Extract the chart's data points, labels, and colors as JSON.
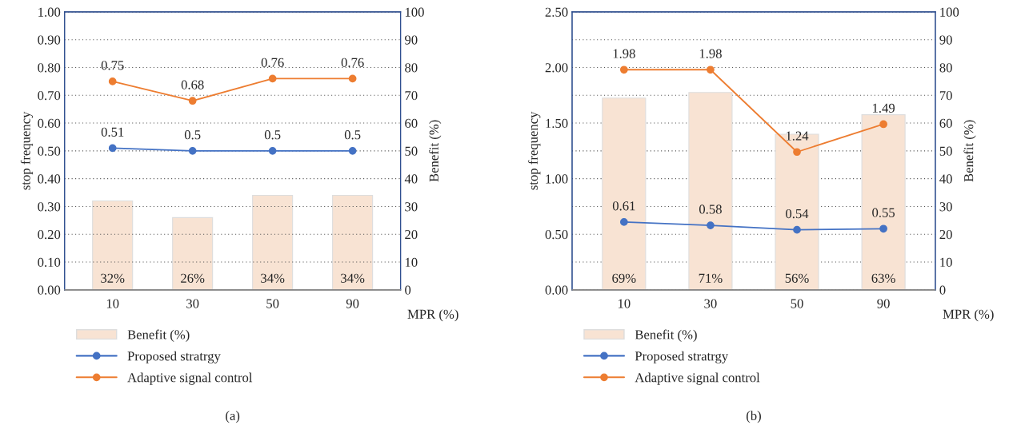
{
  "chart_data": [
    {
      "type": "bar",
      "categories": [
        "10",
        "30",
        "50",
        "90"
      ],
      "xlabel": "MPR (%)",
      "ylabel": "stop frequency",
      "y2label": "Benefit (%)",
      "ylim": [
        0,
        1
      ],
      "yticks": [
        {
          "value": 0,
          "label": "0.00"
        },
        {
          "value": 0.1,
          "label": "0.10"
        },
        {
          "value": 0.2,
          "label": "0.20"
        },
        {
          "value": 0.3,
          "label": "0.30"
        },
        {
          "value": 0.4,
          "label": "0.40"
        },
        {
          "value": 0.5,
          "label": "0.50"
        },
        {
          "value": 0.6,
          "label": "0.60"
        },
        {
          "value": 0.7,
          "label": "0.70"
        },
        {
          "value": 0.8,
          "label": "0.80"
        },
        {
          "value": 0.9,
          "label": "0.90"
        },
        {
          "value": 1,
          "label": "1.00"
        }
      ],
      "y2lim": [
        0,
        100
      ],
      "y2ticks": [
        0,
        10,
        20,
        30,
        40,
        50,
        60,
        70,
        80,
        90,
        100
      ],
      "grid": "y",
      "legend": "bottom",
      "marker": "circle",
      "line_style": "solid",
      "series": [
        {
          "name": "Benefit (%)",
          "axis": "y2",
          "color": "#f8e3d3",
          "values": [
            32,
            26,
            34,
            34
          ],
          "value_labels": [
            "32%",
            "26%",
            "34%",
            "34%"
          ]
        },
        {
          "name": "Proposed stratrgy",
          "type": "line",
          "color": "#4472c4",
          "values": [
            0.51,
            0.5,
            0.5,
            0.5
          ],
          "value_labels": [
            "0.51",
            "0.5",
            "0.5",
            "0.5"
          ]
        },
        {
          "name": "Adaptive signal control",
          "type": "line",
          "color": "#ed7d31",
          "values": [
            0.75,
            0.68,
            0.76,
            0.76
          ],
          "value_labels": [
            "0.75",
            "0.68",
            "0.76",
            "0.76"
          ]
        }
      ],
      "annotations": [
        "(a)"
      ]
    },
    {
      "type": "bar",
      "categories": [
        "10",
        "30",
        "50",
        "90"
      ],
      "xlabel": "MPR (%)",
      "ylabel": "stop frequency",
      "y2label": "Benefit (%)",
      "ylim": [
        0,
        2.5
      ],
      "yticks": [
        {
          "value": 0,
          "label": "0.00"
        },
        {
          "value": 0.5,
          "label": "0.50"
        },
        {
          "value": 1,
          "label": "1.00"
        },
        {
          "value": 1.5,
          "label": "1.50"
        },
        {
          "value": 2,
          "label": "2.00"
        },
        {
          "value": 2.5,
          "label": "2.50"
        }
      ],
      "y2lim": [
        0,
        100
      ],
      "y2ticks": [
        0,
        10,
        20,
        30,
        40,
        50,
        60,
        70,
        80,
        90,
        100
      ],
      "grid": "y2",
      "legend": "bottom",
      "marker": "circle",
      "line_style": "solid",
      "series": [
        {
          "name": "Benefit (%)",
          "axis": "y2",
          "color": "#f8e3d3",
          "values": [
            69,
            71,
            56,
            63
          ],
          "value_labels": [
            "69%",
            "71%",
            "56%",
            "63%"
          ]
        },
        {
          "name": "Proposed stratrgy",
          "type": "line",
          "color": "#4472c4",
          "values": [
            0.61,
            0.58,
            0.54,
            0.55
          ],
          "value_labels": [
            "0.61",
            "0.58",
            "0.54",
            "0.55"
          ]
        },
        {
          "name": "Adaptive signal control",
          "type": "line",
          "color": "#ed7d31",
          "values": [
            1.98,
            1.98,
            1.24,
            1.49
          ],
          "value_labels": [
            "1.98",
            "1.98",
            "1.24",
            "1.49"
          ]
        }
      ],
      "annotations": [
        "(b)"
      ]
    }
  ]
}
